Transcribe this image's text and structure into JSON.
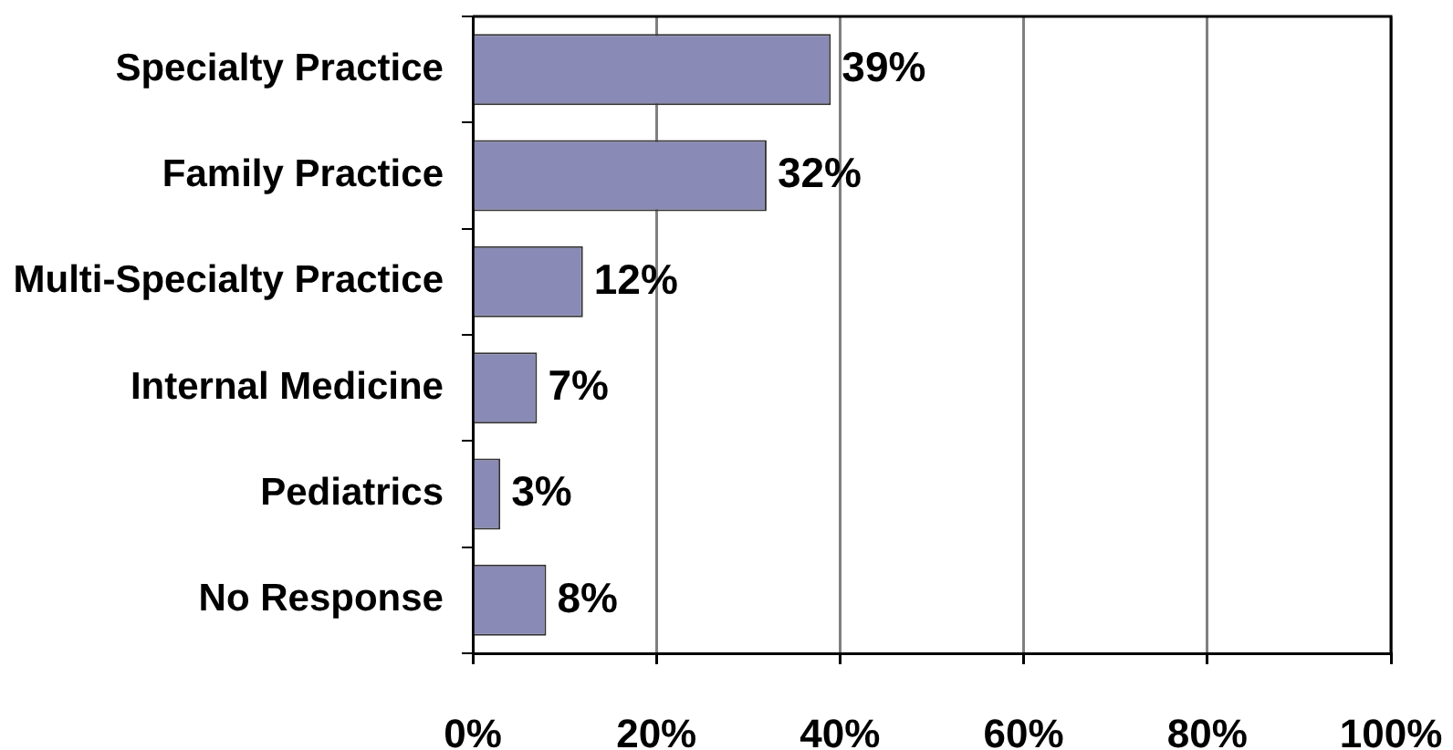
{
  "chart_data": {
    "type": "bar",
    "orientation": "horizontal",
    "categories": [
      "Specialty Practice",
      "Family Practice",
      "Multi-Specialty Practice",
      "Internal Medicine",
      "Pediatrics",
      "No Response"
    ],
    "values": [
      39,
      32,
      12,
      7,
      3,
      8
    ],
    "color": "#8a8ab6",
    "value_labels": [
      "39%",
      "32%",
      "12%",
      "7%",
      "3%",
      "8%"
    ],
    "xlim": [
      0,
      100
    ],
    "xticks": [
      {
        "value": 0,
        "label": "0%"
      },
      {
        "value": 20,
        "label": "20%"
      },
      {
        "value": 40,
        "label": "40%"
      },
      {
        "value": 60,
        "label": "60%"
      },
      {
        "value": 80,
        "label": "80%"
      },
      {
        "value": 100,
        "label": "100%"
      }
    ],
    "grid": "x"
  }
}
